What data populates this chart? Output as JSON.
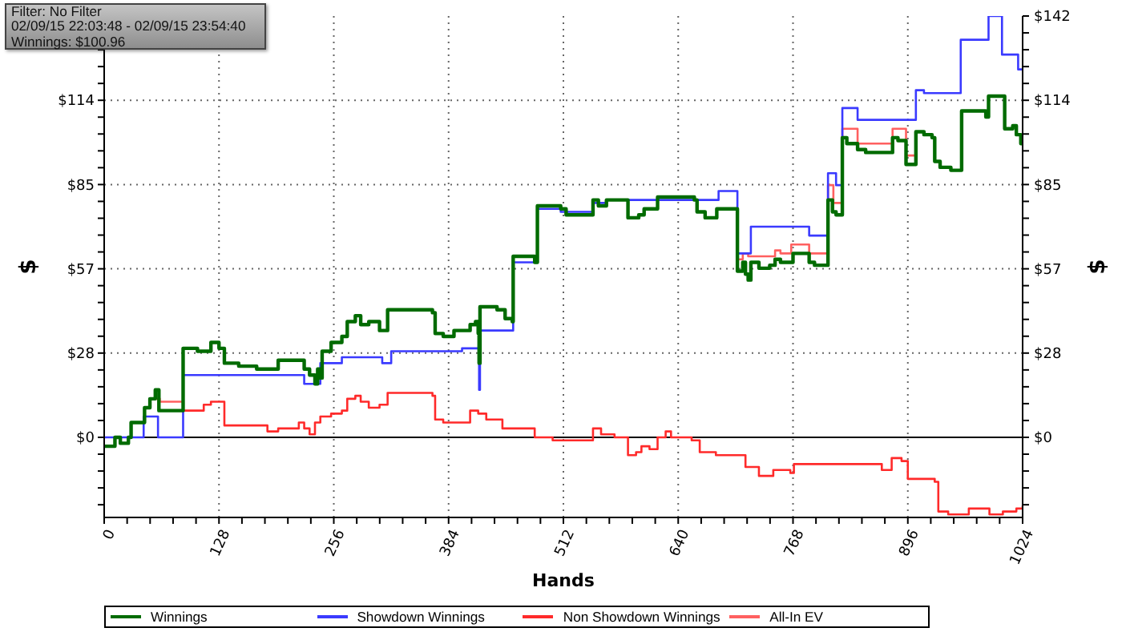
{
  "chart_data": {
    "type": "step",
    "annotations": [
      "Filter: No Filter",
      "02/09/15 22:03:48 - 02/09/15 23:54:40",
      "Winnings: $100.96"
    ],
    "xlabel": "Hands",
    "ylabel": "$",
    "y2label": "$",
    "xlim": [
      0,
      1024
    ],
    "xticks": [
      0,
      {
        "value": 25.6,
        "label": null
      },
      {
        "value": 51.2,
        "label": null
      },
      {
        "value": 76.8,
        "label": null
      },
      {
        "value": 102.4,
        "label": null
      },
      128,
      {
        "value": 153.6,
        "label": null
      },
      {
        "value": 179.2,
        "label": null
      },
      {
        "value": 204.8,
        "label": null
      },
      {
        "value": 230.4,
        "label": null
      },
      256,
      {
        "value": 281.6,
        "label": null
      },
      {
        "value": 307.2,
        "label": null
      },
      {
        "value": 332.8,
        "label": null
      },
      {
        "value": 358.4,
        "label": null
      },
      384,
      {
        "value": 409.6,
        "label": null
      },
      {
        "value": 435.2,
        "label": null
      },
      {
        "value": 460.8,
        "label": null
      },
      {
        "value": 486.4,
        "label": null
      },
      512,
      {
        "value": 537.6,
        "label": null
      },
      {
        "value": 563.2,
        "label": null
      },
      {
        "value": 588.8,
        "label": null
      },
      {
        "value": 614.4,
        "label": null
      },
      640,
      {
        "value": 665.6,
        "label": null
      },
      {
        "value": 691.2,
        "label": null
      },
      {
        "value": 716.8,
        "label": null
      },
      {
        "value": 742.4,
        "label": null
      },
      768,
      {
        "value": 793.6,
        "label": null
      },
      {
        "value": 819.2,
        "label": null
      },
      {
        "value": 844.8,
        "label": null
      },
      {
        "value": 870.4,
        "label": null
      },
      896,
      {
        "value": 921.6,
        "label": null
      },
      {
        "value": 947.2,
        "label": null
      },
      {
        "value": 972.8,
        "label": null
      },
      {
        "value": 998.4,
        "label": null
      },
      1024
    ],
    "ylim": [
      -27,
      142
    ],
    "yticks": [
      {
        "value": -22.72,
        "label": null
      },
      {
        "value": -17.04,
        "label": null
      },
      {
        "value": -11.36,
        "label": null
      },
      {
        "value": -5.68,
        "label": null
      },
      {
        "value": 0,
        "label": "$0"
      },
      {
        "value": 5.68,
        "label": null
      },
      {
        "value": 11.36,
        "label": null
      },
      {
        "value": 17.04,
        "label": null
      },
      {
        "value": 22.72,
        "label": null
      },
      {
        "value": 28.4,
        "label": "$28"
      },
      {
        "value": 34.08,
        "label": null
      },
      {
        "value": 39.76,
        "label": null
      },
      {
        "value": 45.44,
        "label": null
      },
      {
        "value": 51.12,
        "label": null
      },
      {
        "value": 56.8,
        "label": "$57"
      },
      {
        "value": 62.48,
        "label": null
      },
      {
        "value": 68.16,
        "label": null
      },
      {
        "value": 73.84,
        "label": null
      },
      {
        "value": 79.52,
        "label": null
      },
      {
        "value": 85.2,
        "label": "$85"
      },
      {
        "value": 90.88,
        "label": null
      },
      {
        "value": 96.56,
        "label": null
      },
      {
        "value": 102.24,
        "label": null
      },
      {
        "value": 107.92,
        "label": null
      },
      {
        "value": 113.6,
        "label": "$114"
      },
      {
        "value": 119.28,
        "label": null
      },
      {
        "value": 124.96,
        "label": null
      },
      {
        "value": 130.64,
        "label": null
      },
      {
        "value": 136.32,
        "label": null
      },
      {
        "value": 142,
        "label": null
      }
    ],
    "y2lim": [
      -27,
      142
    ],
    "y2ticks": [
      {
        "value": -22.72,
        "label": null
      },
      {
        "value": -17.04,
        "label": null
      },
      {
        "value": -11.36,
        "label": null
      },
      {
        "value": -5.68,
        "label": null
      },
      {
        "value": 0,
        "label": "$0"
      },
      {
        "value": 5.68,
        "label": null
      },
      {
        "value": 11.36,
        "label": null
      },
      {
        "value": 17.04,
        "label": null
      },
      {
        "value": 22.72,
        "label": null
      },
      {
        "value": 28.4,
        "label": "$28"
      },
      {
        "value": 34.08,
        "label": null
      },
      {
        "value": 39.76,
        "label": null
      },
      {
        "value": 45.44,
        "label": null
      },
      {
        "value": 51.12,
        "label": null
      },
      {
        "value": 56.8,
        "label": "$57"
      },
      {
        "value": 62.48,
        "label": null
      },
      {
        "value": 68.16,
        "label": null
      },
      {
        "value": 73.84,
        "label": null
      },
      {
        "value": 79.52,
        "label": null
      },
      {
        "value": 85.2,
        "label": "$85"
      },
      {
        "value": 90.88,
        "label": null
      },
      {
        "value": 96.56,
        "label": null
      },
      {
        "value": 102.24,
        "label": null
      },
      {
        "value": 107.92,
        "label": null
      },
      {
        "value": 113.6,
        "label": "$114"
      },
      {
        "value": 119.28,
        "label": null
      },
      {
        "value": 124.96,
        "label": null
      },
      {
        "value": 130.64,
        "label": null
      },
      {
        "value": 136.32,
        "label": null
      },
      {
        "value": 142,
        "label": "$142"
      }
    ],
    "grid": true,
    "legend": "bottom",
    "ref_lines": [
      {
        "axis": "y",
        "value": 0,
        "color": "#000000"
      }
    ],
    "series": [
      {
        "name": "Winnings",
        "color": "#006b00",
        "x": [
          0,
          12,
          18,
          27,
          30,
          45,
          51,
          57,
          61,
          88,
          104,
          119,
          128,
          134,
          150,
          170,
          194,
          223,
          229,
          235,
          238,
          241,
          243,
          253,
          265,
          271,
          280,
          286,
          295,
          307,
          316,
          366,
          369,
          378,
          390,
          408,
          414,
          417,
          418,
          419,
          438,
          447,
          455,
          456,
          480,
          483,
          509,
          515,
          545,
          551,
          560,
          584,
          596,
          602,
          617,
          658,
          661,
          670,
          683,
          706,
          712,
          715,
          718,
          721,
          730,
          742,
          748,
          754,
          768,
          786,
          792,
          807,
          812,
          816,
          823,
          828,
          840,
          849,
          879,
          885,
          894,
          905,
          914,
          923,
          926,
          932,
          944,
          956,
          983,
          986,
          1004,
          1013,
          1017,
          1022,
          1024
        ],
        "values": [
          -3,
          0,
          -2,
          0,
          5,
          10,
          13,
          16,
          9,
          30,
          29,
          32,
          30,
          25,
          24,
          23,
          26,
          23,
          21,
          18,
          23,
          20,
          29,
          32,
          34,
          39,
          41,
          38,
          39,
          36,
          43,
          42,
          35,
          34,
          36,
          38,
          39,
          35,
          25,
          44,
          43,
          40,
          39,
          61,
          59,
          78,
          77,
          75,
          80,
          78,
          80,
          74,
          75,
          77,
          81,
          80,
          76,
          74,
          77,
          56,
          59,
          55,
          53,
          59,
          57,
          58,
          60,
          59,
          62,
          59,
          58,
          80,
          76,
          75,
          101,
          99,
          97,
          96,
          101,
          100,
          92,
          103,
          102,
          101,
          93,
          91,
          90,
          110,
          108,
          115,
          104,
          105,
          102,
          99,
          101
        ]
      },
      {
        "name": "Showdown Winnings",
        "color": "#3a3aff",
        "x": [
          0,
          44,
          60,
          88,
          223,
          241,
          265,
          310,
          320,
          399,
          418,
          419,
          456,
          483,
          509,
          545,
          560,
          685,
          706,
          721,
          786,
          807,
          816,
          823,
          840,
          905,
          914,
          955,
          986,
          1001,
          1019,
          1024
        ],
        "values": [
          0,
          7,
          0,
          21,
          18,
          25,
          27,
          25,
          29,
          30,
          16,
          36,
          59,
          77,
          76,
          79,
          80,
          83,
          62,
          71,
          68,
          89,
          85,
          111,
          107,
          117,
          116,
          134,
          142,
          129,
          124,
          124
        ]
      },
      {
        "name": "Non Showdown Winnings",
        "color": "#ff2a2a",
        "x": [
          88,
          111,
          119,
          134,
          182,
          194,
          217,
          223,
          229,
          235,
          241,
          253,
          265,
          271,
          280,
          286,
          295,
          307,
          316,
          366,
          369,
          378,
          408,
          417,
          426,
          444,
          480,
          500,
          545,
          554,
          569,
          584,
          593,
          599,
          608,
          617,
          626,
          632,
          655,
          664,
          682,
          715,
          730,
          746,
          765,
          769,
          792,
          867,
          878,
          889,
          896,
          926,
          930,
          941,
          964,
          987,
          1002,
          1017,
          1024
        ],
        "values": [
          9,
          11,
          12,
          4,
          2,
          3,
          5,
          3,
          1,
          5,
          7,
          8,
          9,
          13,
          14,
          12,
          10,
          11,
          15,
          14,
          6,
          5,
          9,
          8,
          6,
          3,
          0,
          -1,
          3,
          1,
          0,
          -6,
          -5,
          -3,
          -4,
          0,
          2,
          0,
          -1,
          -5,
          -6,
          -10,
          -13,
          -11,
          -12,
          -9,
          -9,
          -11,
          -7,
          -8,
          -14,
          -15,
          -25,
          -26,
          -24,
          -26,
          -25,
          -24,
          -23
        ]
      },
      {
        "name": "All-In EV",
        "color": "#ff6060",
        "x": [
          57,
          62,
          87,
          88,
          706,
          712,
          718,
          748,
          754,
          766,
          786,
          807,
          813,
          823,
          840,
          879,
          894,
          904
        ],
        "values": [
          13,
          12,
          12,
          null,
          60,
          62,
          61,
          63,
          62,
          65,
          62,
          85,
          79,
          104,
          99,
          104,
          95,
          95
        ]
      }
    ]
  }
}
